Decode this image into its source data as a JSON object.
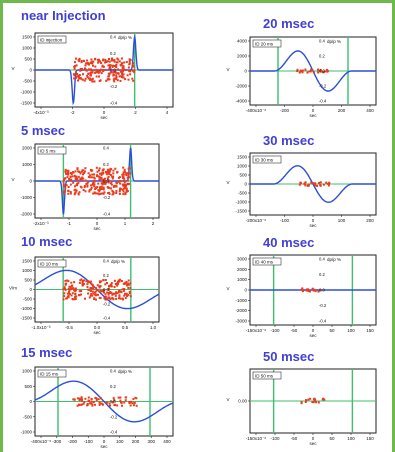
{
  "chart_data": [
    {
      "type": "scatter",
      "id": "p1",
      "title": "near Injection",
      "legend": "ID injection",
      "xlabel": "sec",
      "ylabel": "V",
      "xtick_labels": [
        "-4x10⁻³",
        "-2",
        "0",
        "2",
        "4"
      ],
      "ytick_labels": [
        "1500",
        "1000",
        "500",
        "0",
        "-500",
        "-1000",
        "-1500"
      ],
      "y2tick_labels": [
        "0.4",
        "0.2",
        "0.0",
        "-0.2",
        "-0.4"
      ],
      "y2label": "dp/p %",
      "xlim": [
        -4.5,
        4.5
      ],
      "ylim": [
        -1600,
        1600
      ],
      "wave": "edges",
      "band": {
        "x0": -2,
        "x1": 2,
        "y0": -500,
        "y1": 500
      },
      "frame_lines_x": [
        2
      ]
    },
    {
      "type": "scatter",
      "id": "p2",
      "title": "5 msec",
      "legend": "ID 5 ms",
      "xlabel": "sec",
      "ylabel": "V",
      "xtick_labels": [
        "-2x10⁻³",
        "-1",
        "0",
        "1",
        "2"
      ],
      "ytick_labels": [
        "2000",
        "1000",
        "0",
        "-1000",
        "-2000"
      ],
      "y2tick_labels": [
        "0.4",
        "0.2",
        "0.0",
        "-0.2",
        "-0.4"
      ],
      "y2label": "",
      "xlim": [
        -2.4,
        2.4
      ],
      "ylim": [
        -2200,
        2200
      ],
      "wave": "edges5",
      "band": {
        "x0": -1.3,
        "x1": 1.3,
        "y0": -800,
        "y1": 800
      },
      "frame_lines_x": [
        -1.3,
        1.3
      ]
    },
    {
      "type": "scatter",
      "id": "p3",
      "title": "10 msec",
      "legend": "ID 10 ms",
      "xlabel": "sec",
      "ylabel": "V/m",
      "xtick_labels": [
        "-1.0x10⁻³",
        "-0.5",
        "0.0",
        "0.5",
        "1.0"
      ],
      "ytick_labels": [
        "1500",
        "1000",
        "500",
        "0",
        "-500",
        "-1000",
        "-1500"
      ],
      "y2tick_labels": [
        "0.4",
        "0.2",
        "0.0",
        "-0.2",
        "-0.4"
      ],
      "y2label": "dp/p %",
      "xlim": [
        -1.1,
        1.1
      ],
      "ylim": [
        -1600,
        1600
      ],
      "wave": "sine",
      "band": {
        "x0": -0.6,
        "x1": 0.6,
        "y0": -500,
        "y1": 500
      },
      "frame_lines_x": [
        -0.6,
        0.6
      ]
    },
    {
      "type": "scatter",
      "id": "p4",
      "title": "15 msec",
      "legend": "ID 15 ms",
      "xlabel": "sec",
      "ylabel": "",
      "xtick_labels": [
        "-400x10⁻⁶",
        "-300",
        "-200",
        "-100",
        "0",
        "100",
        "200",
        "300",
        "400"
      ],
      "ytick_labels": [
        "1000",
        "500",
        "0",
        "-500",
        "-1000"
      ],
      "y2tick_labels": [
        "0.4",
        "0.2",
        "0.0",
        "-0.2",
        "-0.4"
      ],
      "y2label": "dp/p %",
      "xlim": [
        -450,
        450
      ],
      "ylim": [
        -1200,
        1200
      ],
      "wave": "sine",
      "band": {
        "x0": -220,
        "x1": 220,
        "y0": -150,
        "y1": 150
      },
      "frame_lines_x": [
        -300,
        300
      ]
    },
    {
      "type": "scatter",
      "id": "p5",
      "title": "20 msec",
      "legend": "ID 20 ms",
      "xlabel": "sec",
      "ylabel": "V",
      "xtick_labels": [
        "-400x10⁻⁶",
        "-200",
        "0",
        "200",
        "400"
      ],
      "ytick_labels": [
        "4000",
        "2000",
        "0",
        "-2000",
        "-4000"
      ],
      "y2tick_labels": [
        "0.4",
        "0.2",
        "0.0",
        "-0.2",
        "-0.4"
      ],
      "y2label": "dp/p %",
      "xlim": [
        -450,
        450
      ],
      "ylim": [
        -4200,
        4200
      ],
      "wave": "sine",
      "band": {
        "x0": -120,
        "x1": 120,
        "y0": -200,
        "y1": 200
      },
      "frame_lines_x": [
        -250,
        250
      ]
    },
    {
      "type": "scatter",
      "id": "p6",
      "title": "30 msec",
      "legend": "ID 30 ms",
      "xlabel": "sec",
      "ylabel": "V",
      "xtick_labels": [
        "-200x10⁻⁶",
        "-100",
        "0",
        "100",
        "200"
      ],
      "ytick_labels": [
        "1500",
        "1000",
        "500",
        "0",
        "-500",
        "-1000",
        "-1500"
      ],
      "y2tick_labels": [],
      "y2label": "",
      "xlim": [
        -220,
        220
      ],
      "ylim": [
        -1600,
        1600
      ],
      "wave": "sine",
      "band": {
        "x0": -60,
        "x1": 60,
        "y0": -100,
        "y1": 100
      },
      "frame_lines_x": []
    },
    {
      "type": "scatter",
      "id": "p7",
      "title": "40 msec",
      "legend": "ID 40 ms",
      "xlabel": "sec",
      "ylabel": "V",
      "xtick_labels": [
        "-150x10⁻⁶",
        "-100",
        "-50",
        "0",
        "50",
        "100",
        "150"
      ],
      "ytick_labels": [
        "3000",
        "2000",
        "1000",
        "0",
        "-1000",
        "-2000",
        "-3000"
      ],
      "y2tick_labels": [
        "0.4",
        "0.2",
        "0.0",
        "-0.2",
        "-0.4"
      ],
      "y2label": "dp/p %",
      "xlim": [
        -160,
        160
      ],
      "ylim": [
        -3200,
        3200
      ],
      "wave": "flat",
      "band": {
        "x0": -30,
        "x1": 30,
        "y0": -150,
        "y1": 150
      },
      "frame_lines_x": [
        -100,
        100
      ]
    },
    {
      "type": "scatter",
      "id": "p8",
      "title": "50 msec",
      "legend": "ID 50 ms",
      "xlabel": "sec",
      "ylabel": "V",
      "xtick_labels": [
        "-150x10⁻⁶",
        "-100",
        "-50",
        "0",
        "50",
        "100",
        "150"
      ],
      "ytick_labels": [
        "0.00"
      ],
      "y2tick_labels": [],
      "y2label": "",
      "xlim": [
        -160,
        160
      ],
      "ylim": [
        -1,
        1
      ],
      "wave": "none",
      "band": {
        "x0": -30,
        "x1": 30,
        "y0": -0.08,
        "y1": 0.08
      },
      "frame_lines_x": [
        -100,
        100
      ]
    }
  ],
  "colors": {
    "wave": "#2a4fd8",
    "particles": "#ec3a1c",
    "frame": "#3cbf6e",
    "accent": "#6fb84b",
    "title": "#3f3fd6"
  }
}
